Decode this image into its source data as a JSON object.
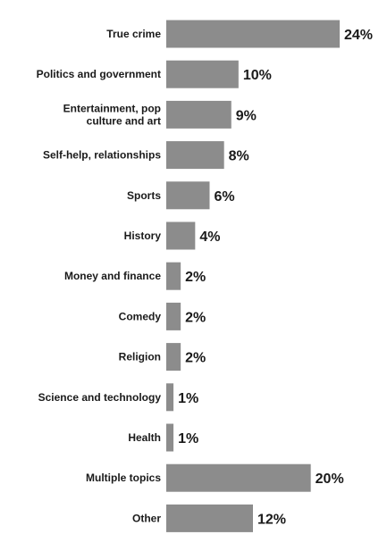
{
  "header_fragment": "",
  "chart_data": {
    "type": "bar",
    "orientation": "horizontal",
    "categories": [
      [
        "True crime"
      ],
      [
        "Politics and government"
      ],
      [
        "Entertainment, pop",
        "culture and art"
      ],
      [
        "Self-help, relationships"
      ],
      [
        "Sports"
      ],
      [
        "History"
      ],
      [
        "Money and finance"
      ],
      [
        "Comedy"
      ],
      [
        "Religion"
      ],
      [
        "Science and technology"
      ],
      [
        "Health"
      ],
      [
        "Multiple topics"
      ],
      [
        "Other"
      ]
    ],
    "values": [
      24,
      10,
      9,
      8,
      6,
      4,
      2,
      2,
      2,
      1,
      1,
      20,
      12
    ],
    "value_labels": [
      "24%",
      "10%",
      "9%",
      "8%",
      "6%",
      "4%",
      "2%",
      "2%",
      "2%",
      "1%",
      "1%",
      "20%",
      "12%"
    ],
    "unit": "%",
    "xlim": [
      0,
      24
    ],
    "grid": false,
    "legend": "none",
    "colors": {
      "bar": "#8c8c8c",
      "text": "#1a1a1a",
      "background": "#ffffff"
    }
  }
}
